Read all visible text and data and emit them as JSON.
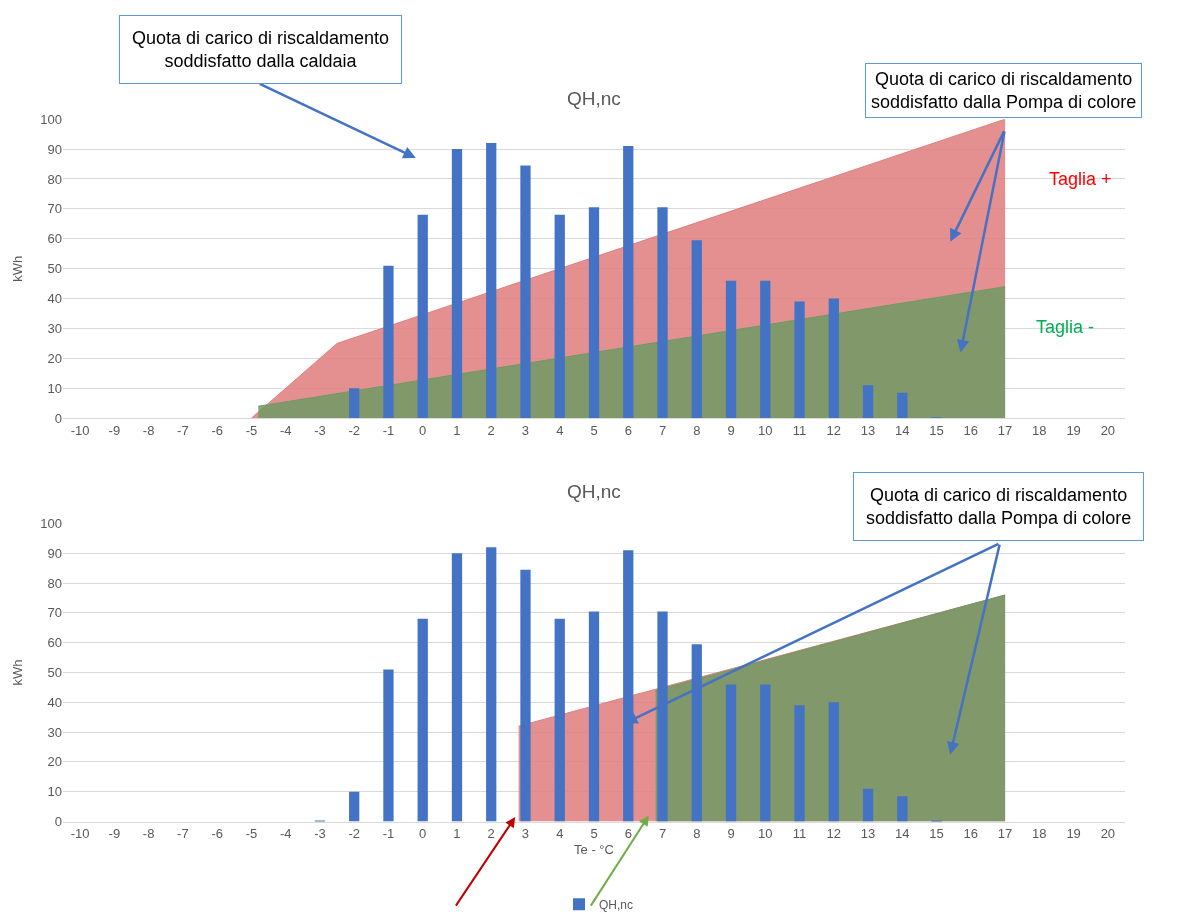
{
  "chart_data": [
    {
      "type": "bar",
      "title": "QH,nc",
      "ylabel": "kWh",
      "xlim": [
        -10.5,
        20.5
      ],
      "xticks": [
        -10,
        -9,
        -8,
        -7,
        -6,
        -5,
        -4,
        -3,
        -2,
        -1,
        0,
        1,
        2,
        3,
        4,
        5,
        6,
        7,
        8,
        9,
        10,
        11,
        12,
        13,
        14,
        15,
        16,
        17,
        18,
        19,
        20
      ],
      "ylim": [
        0,
        100
      ],
      "yticks": [
        0,
        10,
        20,
        30,
        40,
        50,
        60,
        70,
        80,
        90,
        100
      ],
      "grid": "y",
      "legend": false,
      "series": [
        {
          "color": "#4472c4",
          "x": [
            -10,
            -9,
            -8,
            -7,
            -6,
            -5,
            -4,
            -3,
            -2,
            -1,
            0,
            1,
            2,
            3,
            4,
            5,
            6,
            7,
            8,
            9,
            10,
            11,
            12,
            13,
            14,
            15,
            16,
            17,
            18,
            19,
            20
          ],
          "values": [
            0,
            0,
            0,
            0,
            0,
            0,
            0,
            0,
            10,
            51,
            68,
            90,
            92,
            84.5,
            68,
            70.5,
            91,
            70.5,
            59.5,
            46,
            46,
            39,
            40,
            11,
            8.5,
            0.3,
            0,
            0,
            0,
            0,
            0
          ]
        },
        {
          "type": "area",
          "color": "#e07c7c",
          "x": [
            -5,
            -2.5,
            17
          ],
          "values": [
            0,
            25,
            100
          ]
        },
        {
          "type": "area",
          "color": "#6f9a64",
          "x": [
            -4.8,
            17
          ],
          "values": [
            4,
            44
          ]
        }
      ],
      "annotations": [
        "Quota di carico di riscaldamento\nsoddisfatto dalla caldaia",
        "Quota di carico di riscaldamento\nsoddisfatto dalla Pompa di colore",
        "Taglia +",
        "Taglia -"
      ]
    },
    {
      "type": "bar",
      "title": "QH,nc",
      "ylabel": "kWh",
      "xlabel": "Te - °C",
      "xlim": [
        -10.5,
        20.5
      ],
      "xticks": [
        -10,
        -9,
        -8,
        -7,
        -6,
        -5,
        -4,
        -3,
        -2,
        -1,
        0,
        1,
        2,
        3,
        4,
        5,
        6,
        7,
        8,
        9,
        10,
        11,
        12,
        13,
        14,
        15,
        16,
        17,
        18,
        19,
        20
      ],
      "ylim": [
        0,
        100
      ],
      "yticks": [
        0,
        10,
        20,
        30,
        40,
        50,
        60,
        70,
        80,
        90,
        100
      ],
      "grid": "y",
      "legend": "bottom",
      "series": [
        {
          "name": "QH,nc",
          "color": "#4472c4",
          "x": [
            -10,
            -9,
            -8,
            -7,
            -6,
            -5,
            -4,
            -3,
            -2,
            -1,
            0,
            1,
            2,
            3,
            4,
            5,
            6,
            7,
            8,
            9,
            10,
            11,
            12,
            13,
            14,
            15,
            16,
            17,
            18,
            19,
            20
          ],
          "values": [
            0,
            0,
            0,
            0,
            0,
            0,
            0,
            0.3,
            10,
            51,
            68,
            90,
            92,
            84.5,
            68,
            70.5,
            91,
            70.5,
            59.5,
            46,
            46,
            39,
            40,
            11,
            8.5,
            0.3,
            0,
            0,
            0,
            0,
            0
          ]
        },
        {
          "type": "area",
          "color": "#e07c7c",
          "x": [
            2.8,
            17
          ],
          "values": [
            32,
            76
          ]
        },
        {
          "type": "area",
          "color": "#6f9a64",
          "x": [
            6.8,
            17
          ],
          "values": [
            44,
            76
          ]
        }
      ],
      "annotations": [
        {
          "text": "Quota di carico di riscaldamento\nsoddisfatto dalla Pompa di colore",
          "x": 5.9,
          "y": 33
        }
      ]
    }
  ]
}
